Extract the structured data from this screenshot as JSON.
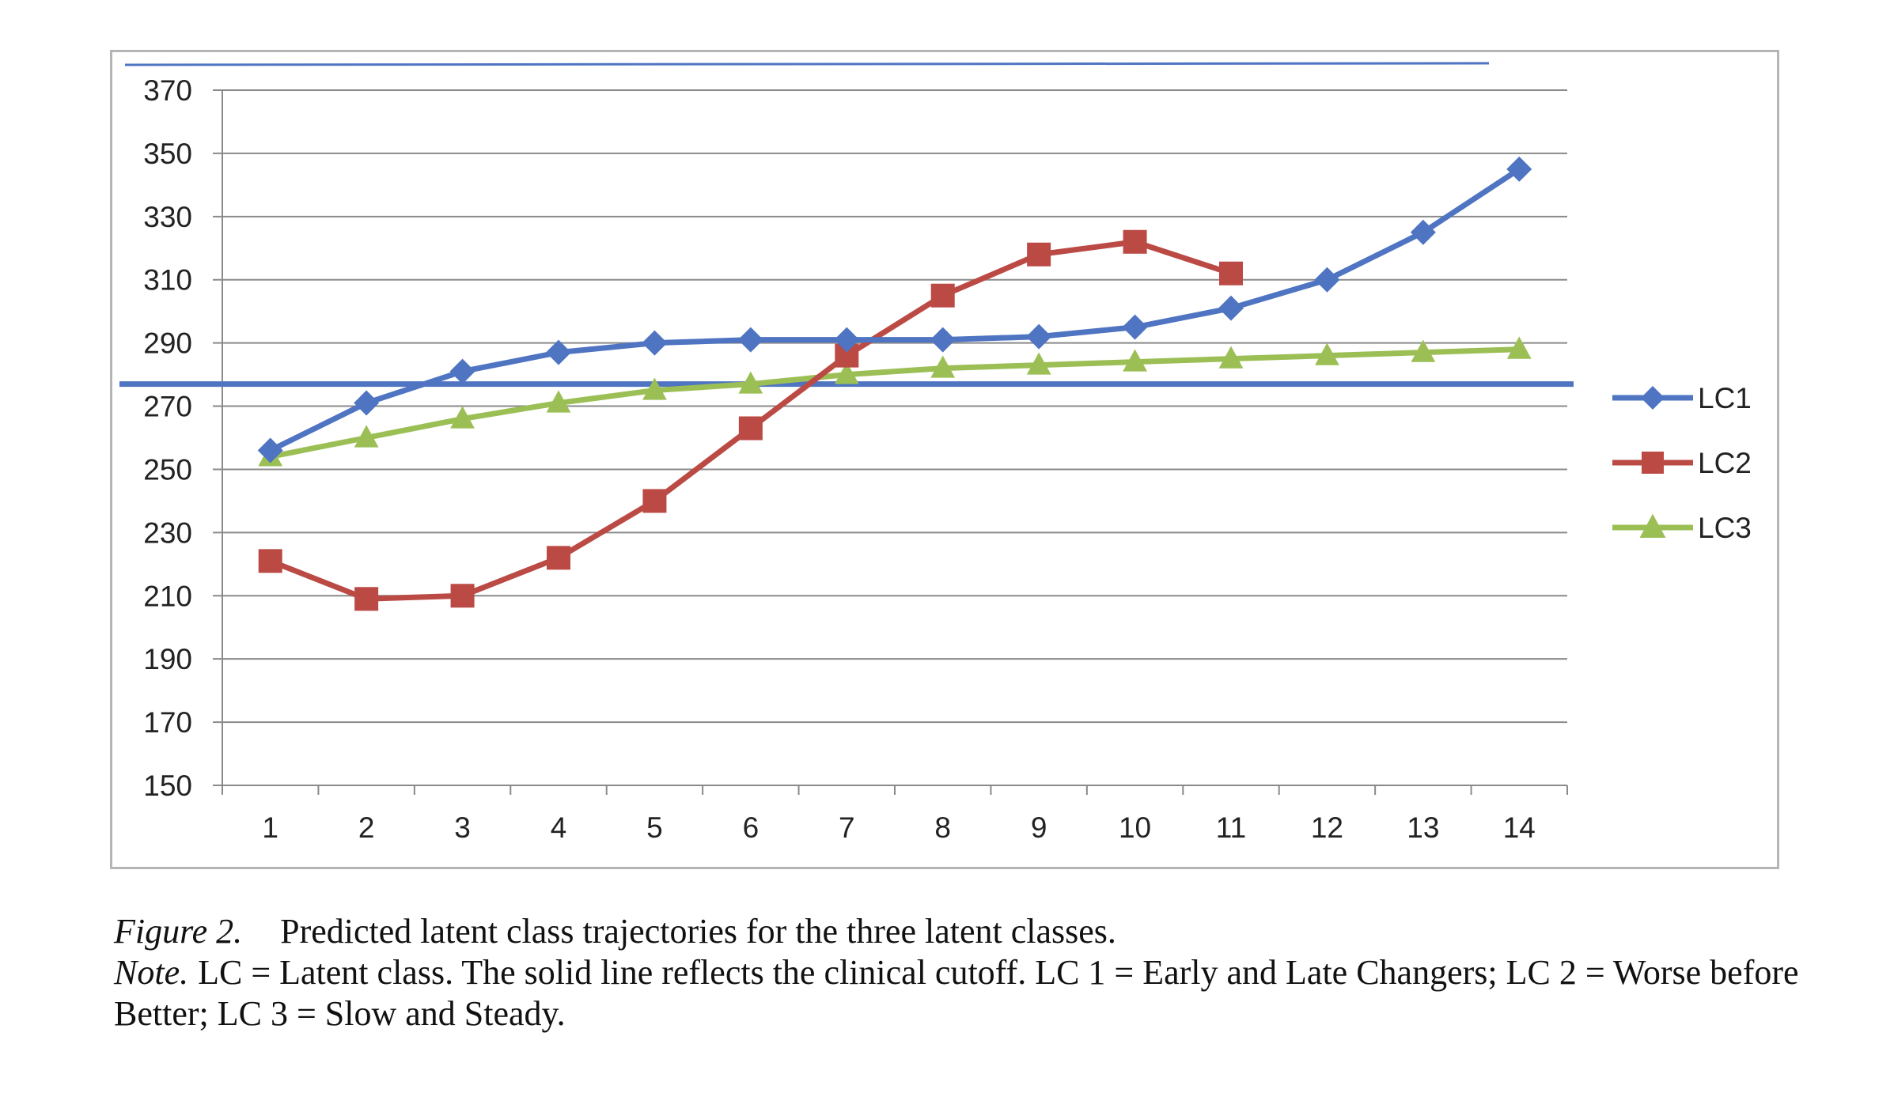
{
  "chart_data": {
    "type": "line",
    "x": [
      1,
      2,
      3,
      4,
      5,
      6,
      7,
      8,
      9,
      10,
      11,
      12,
      13,
      14
    ],
    "ylim": [
      150,
      370
    ],
    "yticks": [
      150,
      170,
      190,
      210,
      230,
      250,
      270,
      290,
      310,
      330,
      350,
      370
    ],
    "grid": true,
    "legend_position": "right",
    "series": [
      {
        "name": "LC1",
        "color": "#4f74c2",
        "marker": "diamond",
        "values": [
          256,
          271,
          281,
          287,
          290,
          291,
          291,
          291,
          292,
          295,
          301,
          310,
          325,
          345
        ]
      },
      {
        "name": "LC2",
        "color": "#bb4a45",
        "marker": "square",
        "values": [
          221,
          209,
          210,
          222,
          240,
          263,
          286,
          305,
          318,
          322,
          312,
          null,
          null,
          null
        ]
      },
      {
        "name": "LC3",
        "color": "#9cbf55",
        "marker": "triangle",
        "values": [
          254,
          260,
          266,
          271,
          275,
          277,
          280,
          282,
          283,
          284,
          285,
          286,
          287,
          288
        ]
      }
    ],
    "reference_lines": [
      {
        "value": 277,
        "color": "#4f74c2"
      }
    ]
  },
  "caption": {
    "figure_label": "Figure 2.",
    "figure_text": "Predicted latent class trajectories for the three latent classes.",
    "note_label": "Note.",
    "note_text": "LC = Latent class. The solid line reflects the clinical cutoff. LC 1 = Early and Late Changers; LC 2 = Worse before Better; LC 3 = Slow and Steady."
  }
}
